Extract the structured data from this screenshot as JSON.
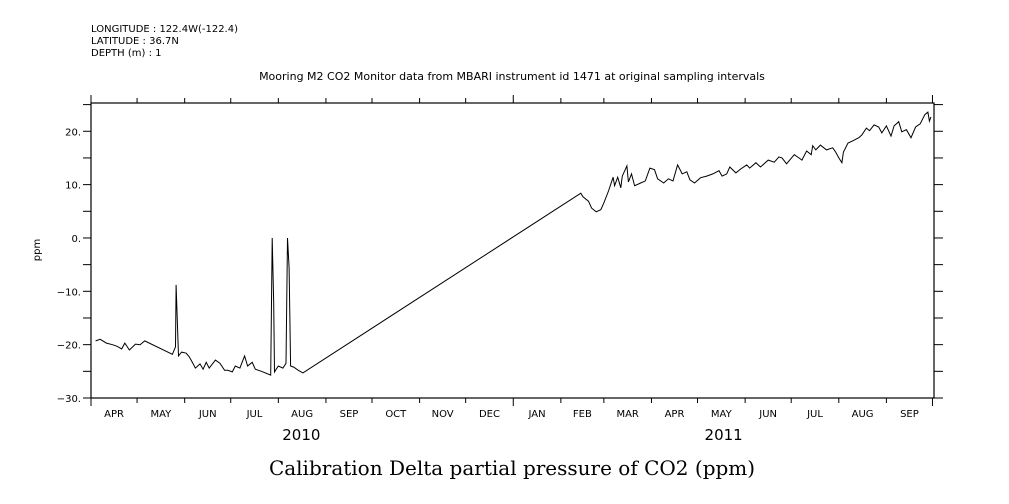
{
  "header": {
    "longitude": "LONGITUDE : 122.4W(-122.4)",
    "latitude": "LATITUDE : 36.7N",
    "depth": "DEPTH (m) : 1"
  },
  "chart_data": {
    "type": "line",
    "title": "Mooring M2 CO2 Monitor data from MBARI instrument id 1471 at original sampling intervals",
    "xlabel": "Calibration Delta partial pressure of CO2 (ppm)",
    "ylabel": "ppm",
    "x_units": "days since 2010-04-01",
    "xlim": [
      0,
      549
    ],
    "ylim": [
      -30,
      25.3
    ],
    "grid": false,
    "y_ticks": [
      {
        "value": 20,
        "label": "20."
      },
      {
        "value": 10,
        "label": "10."
      },
      {
        "value": 0,
        "label": "0."
      },
      {
        "value": -10,
        "label": "-10."
      },
      {
        "value": -20,
        "label": "-20."
      },
      {
        "value": -30,
        "label": "-30."
      }
    ],
    "y_minor_ticks": [
      25,
      15,
      5,
      -5,
      -15,
      -25
    ],
    "month_boundaries": [
      0,
      30,
      61,
      91,
      122,
      153,
      183,
      214,
      244,
      275,
      306,
      334,
      365,
      395,
      426,
      456,
      487,
      518,
      548
    ],
    "month_labels": [
      {
        "label": "APR",
        "start": 0,
        "end": 30
      },
      {
        "label": "MAY",
        "start": 30,
        "end": 61
      },
      {
        "label": "JUN",
        "start": 61,
        "end": 91
      },
      {
        "label": "JUL",
        "start": 91,
        "end": 122
      },
      {
        "label": "AUG",
        "start": 122,
        "end": 153
      },
      {
        "label": "SEP",
        "start": 153,
        "end": 183
      },
      {
        "label": "OCT",
        "start": 183,
        "end": 214
      },
      {
        "label": "NOV",
        "start": 214,
        "end": 244
      },
      {
        "label": "DEC",
        "start": 244,
        "end": 275
      },
      {
        "label": "JAN",
        "start": 275,
        "end": 306
      },
      {
        "label": "FEB",
        "start": 306,
        "end": 334
      },
      {
        "label": "MAR",
        "start": 334,
        "end": 365
      },
      {
        "label": "APR",
        "start": 365,
        "end": 395
      },
      {
        "label": "MAY",
        "start": 395,
        "end": 426
      },
      {
        "label": "JUN",
        "start": 426,
        "end": 456
      },
      {
        "label": "JUL",
        "start": 456,
        "end": 487
      },
      {
        "label": "AUG",
        "start": 487,
        "end": 518
      },
      {
        "label": "SEP",
        "start": 518,
        "end": 548
      }
    ],
    "year_labels": [
      {
        "label": "2010",
        "center": 137
      },
      {
        "label": "2011",
        "center": 412
      }
    ],
    "year_boundary": 275,
    "series": [
      {
        "name": "Calibration Delta pCO2",
        "x": [
          3,
          6,
          10,
          14,
          17,
          20,
          22,
          25,
          29,
          32,
          35,
          53,
          55,
          55.4,
          57,
          59,
          62,
          64,
          66,
          68,
          71,
          73,
          75,
          77,
          81,
          84,
          87,
          89,
          92,
          94,
          97,
          100,
          102,
          105,
          107,
          111,
          117,
          118,
          119,
          119.5,
          122,
          125,
          127,
          128,
          129,
          130,
          132,
          135,
          138,
          319,
          320.5,
          324,
          326,
          329,
          332,
          334,
          337,
          340,
          341,
          343,
          345,
          346,
          349,
          350,
          352,
          354,
          358,
          361,
          364,
          367,
          369,
          373,
          376,
          379,
          382,
          385,
          388,
          390,
          393,
          397,
          401,
          405,
          409,
          411,
          414,
          416,
          420,
          423,
          427,
          429,
          433,
          436,
          441,
          445,
          448,
          450,
          453,
          455,
          458,
          461,
          463,
          466,
          469,
          470,
          472,
          475,
          479,
          483,
          485,
          487,
          489,
          490,
          493,
          496,
          500,
          502,
          505,
          507,
          510,
          513,
          515,
          518,
          521,
          523,
          526,
          528,
          531,
          534,
          537,
          540,
          543,
          545,
          546,
          547
        ],
        "y": [
          -19.3,
          -19.0,
          -19.7,
          -20.0,
          -20.3,
          -20.8,
          -19.7,
          -21.0,
          -19.9,
          -20.0,
          -19.3,
          -21.8,
          -20.4,
          -8.8,
          -22.1,
          -21.4,
          -21.6,
          -22.3,
          -23.3,
          -24.4,
          -23.6,
          -24.6,
          -23.3,
          -24.4,
          -22.9,
          -23.5,
          -24.8,
          -24.8,
          -25.1,
          -24.0,
          -24.4,
          -22.1,
          -24.0,
          -23.3,
          -24.6,
          -25.0,
          -25.7,
          0.0,
          -12.2,
          -25.1,
          -24.0,
          -24.4,
          -23.5,
          0.0,
          -5.6,
          -24.0,
          -24.2,
          -24.8,
          -25.3,
          8.4,
          7.7,
          6.9,
          5.6,
          4.9,
          5.3,
          6.6,
          8.8,
          11.4,
          9.8,
          11.4,
          9.4,
          11.6,
          13.5,
          10.5,
          12.0,
          9.8,
          10.3,
          10.7,
          13.1,
          12.8,
          11.1,
          10.3,
          11.1,
          10.7,
          13.7,
          12.0,
          12.4,
          10.9,
          10.3,
          11.3,
          11.6,
          12.0,
          12.6,
          11.6,
          12.0,
          13.3,
          12.2,
          12.9,
          13.7,
          13.1,
          14.1,
          13.3,
          14.6,
          14.2,
          15.2,
          15.0,
          13.9,
          14.6,
          15.6,
          15.0,
          14.6,
          16.3,
          15.6,
          17.3,
          16.5,
          17.4,
          16.5,
          16.9,
          16.1,
          15.0,
          14.1,
          16.1,
          17.8,
          18.2,
          18.8,
          19.3,
          20.6,
          20.1,
          21.2,
          20.8,
          19.7,
          21.0,
          19.1,
          21.0,
          21.8,
          19.9,
          20.3,
          18.8,
          20.8,
          21.4,
          23.1,
          23.6,
          21.9,
          22.7
        ]
      }
    ]
  }
}
